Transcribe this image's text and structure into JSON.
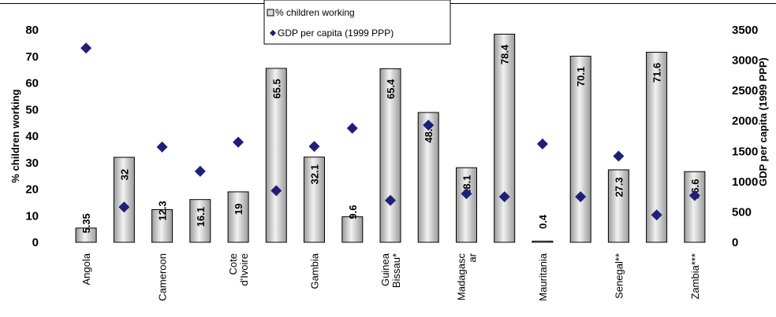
{
  "chart_data": {
    "type": "bar",
    "categories": [
      "Angola",
      "",
      "Cameroon",
      "",
      "Cote d'Ivoire",
      "",
      "Gambia",
      "",
      "Guinea Bissau*",
      "",
      "Madagascar",
      "",
      "Mauritania",
      "",
      "Senegal**",
      "",
      "Zambia***"
    ],
    "category_label_lines": [
      [
        "Angola"
      ],
      [],
      [
        "Cameroon"
      ],
      [],
      [
        "Cote",
        "d'Ivoire"
      ],
      [],
      [
        "Gambia"
      ],
      [],
      [
        "Guinea",
        "Bissau*"
      ],
      [],
      [
        "Madagasc",
        "ar"
      ],
      [],
      [
        "Mauritania"
      ],
      [],
      [
        "Senegal**"
      ],
      [],
      [
        "Zambia***"
      ]
    ],
    "series": [
      {
        "name": "% children working",
        "axis": "left",
        "values": [
          5.35,
          32,
          12.3,
          16.1,
          19,
          65.5,
          32.1,
          9.6,
          65.4,
          48.9,
          28.1,
          78.4,
          0.4,
          70.1,
          27.3,
          71.6,
          26.6
        ],
        "labels": [
          "5.35",
          "32",
          "12.3",
          "16.1",
          "19",
          "65.5",
          "32.1",
          "9.6",
          "65.4",
          "48.9",
          "28.1",
          "78.4",
          "0.4",
          "70.1",
          "27.3",
          "71.6",
          "26.6"
        ]
      },
      {
        "name": "GDP per capita (1999 PPP)",
        "axis": "right",
        "values": [
          3200,
          580,
          1570,
          1170,
          1650,
          850,
          1580,
          1880,
          690,
          1930,
          800,
          750,
          1620,
          750,
          1420,
          450,
          770
        ]
      }
    ],
    "ylabel": "% children working",
    "y2label": "GDP per capita (1999 PPP)",
    "ylim": [
      0,
      80
    ],
    "y2lim": [
      0,
      3500
    ],
    "yticks": [
      0,
      10,
      20,
      30,
      40,
      50,
      60,
      70,
      80
    ],
    "y2ticks": [
      0,
      500,
      1000,
      1500,
      2000,
      2500,
      3000,
      3500
    ],
    "legend_position": "top-center",
    "grid": false,
    "colors": {
      "bar_fill_light": "#f2f2f2",
      "bar_fill_dark": "#9a9a9a",
      "bar_stroke": "#000000",
      "marker": "#1f1f7a"
    }
  }
}
